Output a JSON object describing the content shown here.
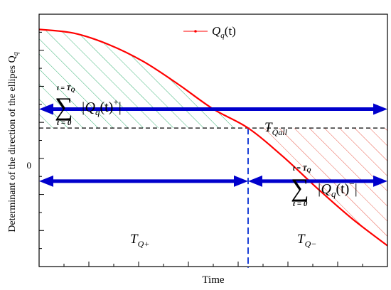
{
  "chart_data": {
    "type": "line",
    "xlabel": "Time",
    "ylabel": "Determinant of the direction of the ellipes Q",
    "ylabel_sub": "q",
    "zero_tick": "0",
    "xlim": [
      0,
      1
    ],
    "ylim": [
      -0.73,
      0.6
    ],
    "zero_crossing": 0.6,
    "series": [
      {
        "name": "Q",
        "name_sub": "q",
        "name_suffix": "(t)",
        "color": "#ff0000",
        "x": [
          0,
          0.1,
          0.2,
          0.3,
          0.4,
          0.5,
          0.6,
          0.7,
          0.8,
          0.9,
          1.0
        ],
        "y": [
          0.52,
          0.5,
          0.44,
          0.35,
          0.23,
          0.1,
          0.0,
          -0.15,
          -0.32,
          -0.48,
          -0.62
        ]
      }
    ],
    "arrow_levels": {
      "T_Qall": 0.1,
      "T_Q_parts": -0.28
    },
    "annotations": {
      "sum_top": "t = T",
      "sum_top_sub": "Q",
      "sum_bottom": "t = 0",
      "sum_symbol": "∑",
      "sum_plus_prefix": "|Q",
      "sum_plus_sub": "q",
      "sum_plus_suffix": "(t)",
      "sum_plus_sup": "+",
      "sum_minus_prefix": "|Q",
      "sum_minus_sub": "q",
      "sum_minus_suffix": "(t)",
      "sum_minus_sup": "−",
      "bar": "|",
      "T_Qall": "T",
      "T_Qall_sub": "Qall",
      "T_Qplus": "T",
      "T_Qplus_sub": "Q+",
      "T_Qminus": "T",
      "T_Qminus_sub": "Q−"
    },
    "colors": {
      "curve": "#ff0000",
      "arrows": "#0000cc",
      "positive_hatch": "#22aa66",
      "negative_hatch": "#e84a3a"
    }
  }
}
